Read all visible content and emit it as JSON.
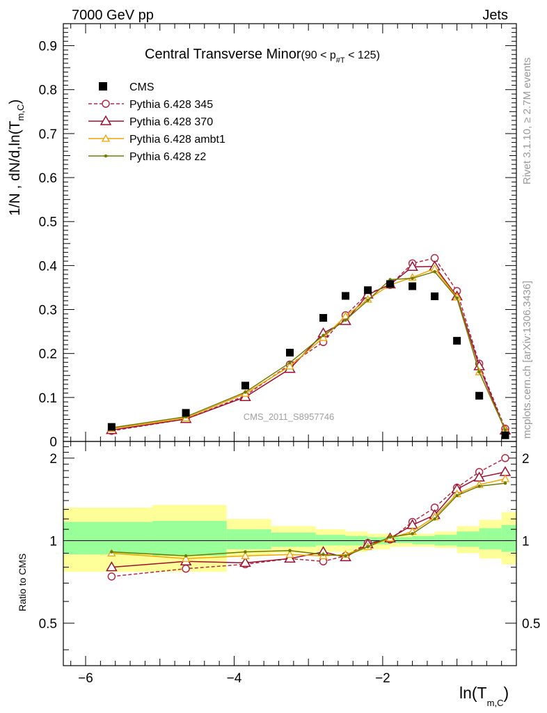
{
  "header": {
    "left": "7000 GeV pp",
    "right": "Jets"
  },
  "side_labels": {
    "rivet": "Rivet 3.1.10, ≥ 2.7M events",
    "mcplots": "mcplots.cern.ch [arXiv:1306.3436]"
  },
  "chart_data": {
    "type": "line",
    "title": "Central Transverse Minor",
    "title_cut": "(90 < p",
    "title_cut_sub": "#T",
    "title_cut_end": " < 125)",
    "watermark": "CMS_2011_S8957746",
    "xlabel_main": "ln(T",
    "xlabel_sub": "m,C",
    "xlabel_end": ")",
    "ylabel_top": "1/N , dN/d,ln(T",
    "ylabel_top_sub": "m,C",
    "ylabel_top_end": ")",
    "ylabel_bottom": "Ratio to CMS",
    "xlim": [
      -6.3,
      -0.2
    ],
    "ylim_top": [
      0,
      0.95
    ],
    "ylim_bottom": [
      0.35,
      2.3
    ],
    "x_ticks": [
      "-6",
      "-4",
      "-2"
    ],
    "x_tick_values": [
      -6,
      -4,
      -2
    ],
    "y_ticks_top": [
      "0",
      "0.1",
      "0.2",
      "0.3",
      "0.4",
      "0.5",
      "0.6",
      "0.7",
      "0.8",
      "0.9"
    ],
    "y_tick_values_top": [
      0,
      0.1,
      0.2,
      0.3,
      0.4,
      0.5,
      0.6,
      0.7,
      0.8,
      0.9
    ],
    "y_ticks_bottom": [
      "0.5",
      "1",
      "2"
    ],
    "y_tick_values_bottom": [
      0.5,
      1,
      2
    ],
    "x": [
      -5.65,
      -4.65,
      -3.85,
      -3.25,
      -2.8,
      -2.5,
      -2.2,
      -1.9,
      -1.6,
      -1.3,
      -1.0,
      -0.7,
      -0.35
    ],
    "data": {
      "name": "CMS",
      "values": [
        0.033,
        0.065,
        0.127,
        0.202,
        0.281,
        0.331,
        0.344,
        0.358,
        0.353,
        0.33,
        0.229,
        0.104,
        0.014
      ]
    },
    "series": [
      {
        "name": "Pythia 6.428 345",
        "color": "#b22a45",
        "dashed": true,
        "marker": "circle",
        "values": [
          0.024,
          0.051,
          0.104,
          0.175,
          0.226,
          0.287,
          0.336,
          0.356,
          0.405,
          0.417,
          0.342,
          0.177,
          0.029
        ],
        "ratio": [
          0.74,
          0.79,
          0.82,
          0.86,
          0.84,
          0.88,
          0.98,
          1.01,
          1.17,
          1.32,
          1.56,
          1.78,
          2.0
        ]
      },
      {
        "name": "Pythia 6.428 370",
        "color": "#9a1030",
        "dashed": false,
        "marker": "triangle",
        "values": [
          0.026,
          0.051,
          0.101,
          0.165,
          0.246,
          0.274,
          0.334,
          0.357,
          0.397,
          0.398,
          0.33,
          0.171,
          0.025
        ],
        "ratio": [
          0.8,
          0.84,
          0.83,
          0.86,
          0.91,
          0.87,
          0.97,
          1.02,
          1.14,
          1.24,
          1.54,
          1.7,
          1.78
        ]
      },
      {
        "name": "Pythia 6.428 ambt1",
        "color": "#f0a400",
        "dashed": false,
        "marker": "triangle-small",
        "values": [
          0.029,
          0.053,
          0.109,
          0.171,
          0.236,
          0.285,
          0.323,
          0.356,
          0.373,
          0.393,
          0.328,
          0.158,
          0.027
        ],
        "ratio": [
          0.9,
          0.86,
          0.88,
          0.89,
          0.88,
          0.89,
          0.95,
          1.02,
          1.08,
          1.22,
          1.48,
          1.6,
          1.68
        ]
      },
      {
        "name": "Pythia 6.428 z2",
        "color": "#707a00",
        "dashed": false,
        "marker": "dot",
        "values": [
          0.031,
          0.056,
          0.112,
          0.179,
          0.241,
          0.276,
          0.321,
          0.368,
          0.371,
          0.386,
          0.326,
          0.158,
          0.026
        ],
        "ratio": [
          0.91,
          0.88,
          0.91,
          0.92,
          0.89,
          0.88,
          0.95,
          1.03,
          1.06,
          1.2,
          1.46,
          1.58,
          1.62
        ]
      }
    ],
    "bands": {
      "x_edges": [
        -6.3,
        -5.1,
        -4.1,
        -3.5,
        -2.9,
        -2.5,
        -2.2,
        -1.9,
        -1.6,
        -1.3,
        -1.0,
        -0.7,
        -0.4,
        -0.2
      ],
      "yellow_lo": [
        0.77,
        0.77,
        0.88,
        0.9,
        0.91,
        0.91,
        0.93,
        0.95,
        0.95,
        0.94,
        0.9,
        0.86,
        0.82
      ],
      "yellow_hi": [
        1.32,
        1.35,
        1.2,
        1.13,
        1.1,
        1.08,
        1.06,
        1.05,
        1.06,
        1.08,
        1.13,
        1.19,
        1.27
      ],
      "green_lo": [
        0.89,
        0.88,
        0.93,
        0.95,
        0.96,
        0.96,
        0.97,
        0.98,
        0.97,
        0.96,
        0.95,
        0.93,
        0.91
      ],
      "green_hi": [
        1.17,
        1.18,
        1.1,
        1.07,
        1.05,
        1.04,
        1.03,
        1.03,
        1.04,
        1.05,
        1.08,
        1.11,
        1.14
      ]
    }
  }
}
